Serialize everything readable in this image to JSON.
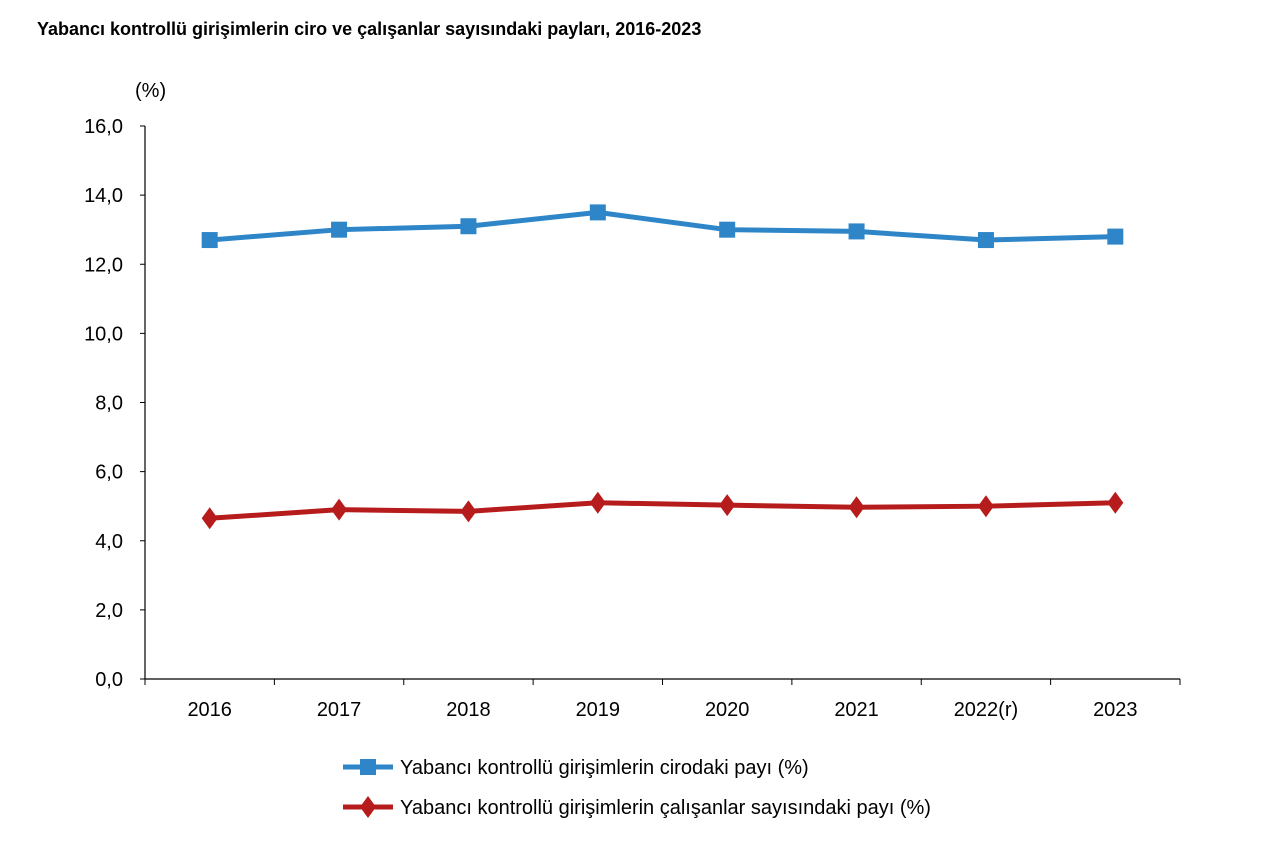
{
  "chart_data": {
    "type": "line",
    "title": "Yabancı kontrollü girişimlerin ciro ve çalışanlar sayısındaki payları, 2016-2023",
    "ylabel": "(%)",
    "xlabel": "",
    "ylim": [
      0,
      16
    ],
    "yticks": [
      "0,0",
      "2,0",
      "4,0",
      "6,0",
      "8,0",
      "10,0",
      "12,0",
      "14,0",
      "16,0"
    ],
    "ytick_values": [
      0,
      2,
      4,
      6,
      8,
      10,
      12,
      14,
      16
    ],
    "categories": [
      "2016",
      "2017",
      "2018",
      "2019",
      "2020",
      "2021",
      "2022(r)",
      "2023"
    ],
    "grid": false,
    "legend_position": "bottom",
    "series": [
      {
        "name": "Yabancı kontrollü girişimlerin cirodaki payı (%)",
        "color": "#2e86c8",
        "marker": "square",
        "values": [
          12.7,
          13.0,
          13.1,
          13.5,
          13.0,
          12.95,
          12.7,
          12.8
        ]
      },
      {
        "name": "Yabancı kontrollü girişimlerin çalışanlar sayısındaki payı (%)",
        "color": "#b71c1c",
        "marker": "diamond",
        "values": [
          4.65,
          4.9,
          4.85,
          5.1,
          5.03,
          4.97,
          5.0,
          5.1
        ]
      }
    ]
  }
}
